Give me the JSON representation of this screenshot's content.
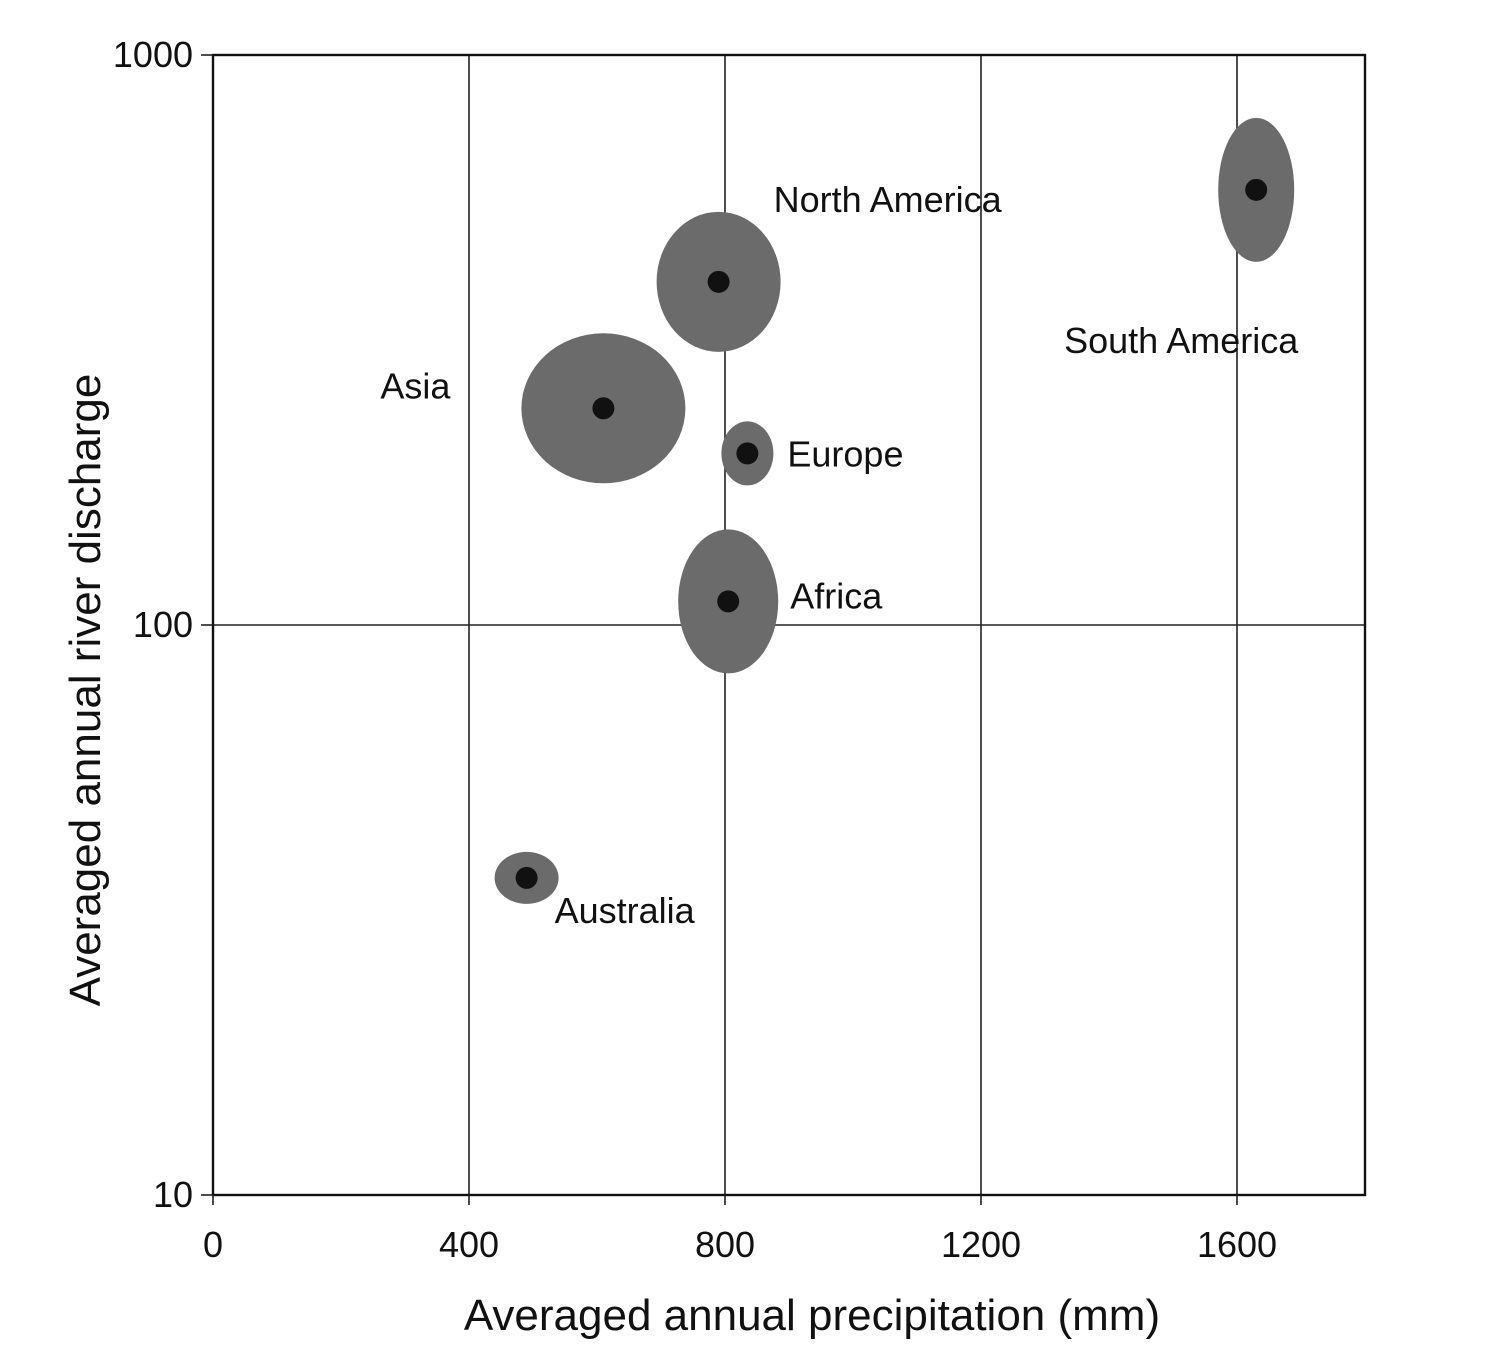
{
  "chart_data": {
    "type": "scatter",
    "title": "",
    "xlabel": "Averaged annual precipitation (mm)",
    "ylabel": "Averaged annual river discharge",
    "xlim": [
      0,
      1800
    ],
    "ylim": [
      10,
      1000
    ],
    "yscale": "log",
    "grid": true,
    "x_ticks": [
      {
        "value": 0,
        "label": "0"
      },
      {
        "value": 400,
        "label": "400"
      },
      {
        "value": 800,
        "label": "800"
      },
      {
        "value": 1200,
        "label": "1200"
      },
      {
        "value": 1600,
        "label": "1600"
      }
    ],
    "y_ticks": [
      {
        "value": 10,
        "label": "10"
      },
      {
        "value": 100,
        "label": "100"
      },
      {
        "value": 1000,
        "label": "1000"
      }
    ],
    "points": [
      {
        "label": "North America",
        "x": 790,
        "y": 400
      },
      {
        "label": "South America",
        "x": 1630,
        "y": 580
      },
      {
        "label": "Asia",
        "x": 610,
        "y": 240
      },
      {
        "label": "Europe",
        "x": 835,
        "y": 200
      },
      {
        "label": "Africa",
        "x": 805,
        "y": 110
      },
      {
        "label": "Australia",
        "x": 490,
        "y": 36
      }
    ],
    "colors": {
      "marker": "#111111",
      "silhouette": "#6b6b6b"
    }
  }
}
